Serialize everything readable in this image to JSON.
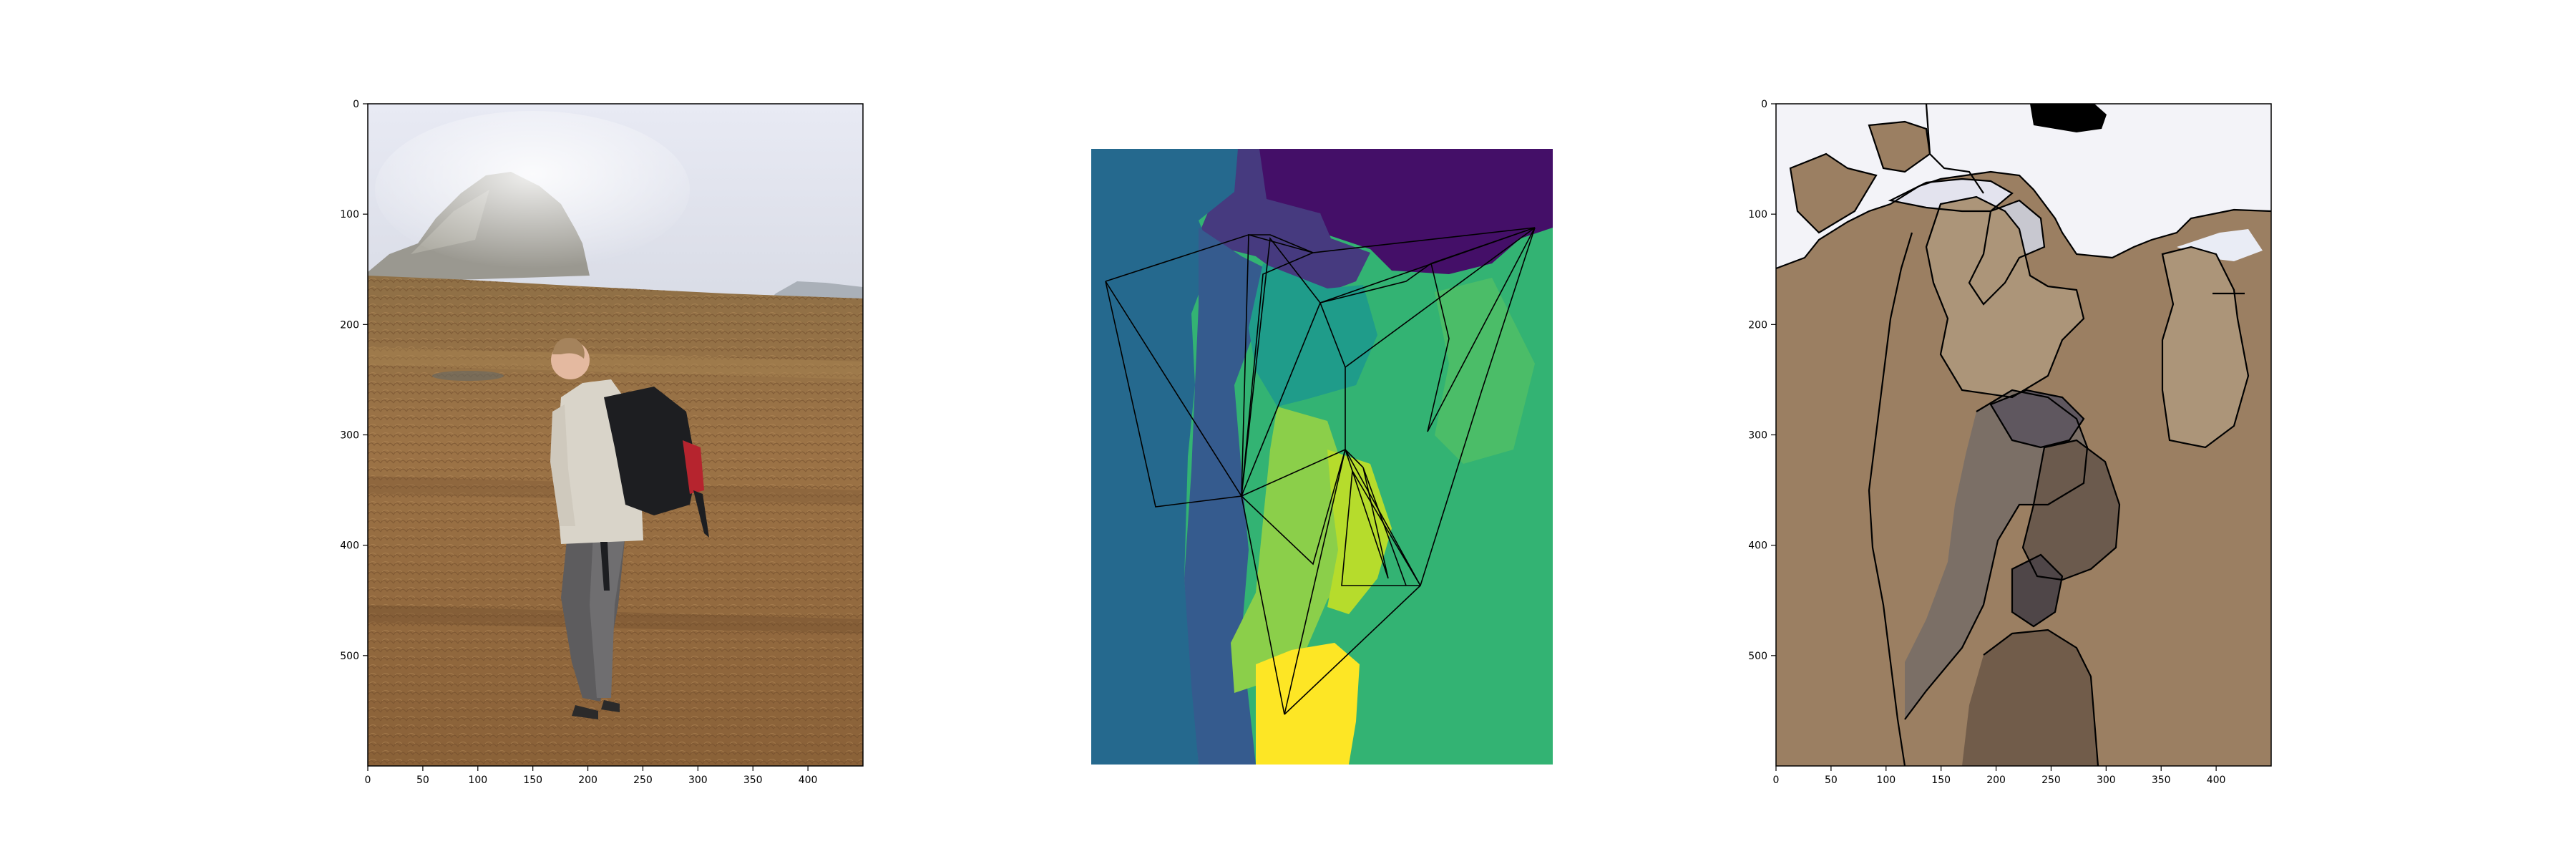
{
  "figure": {
    "panel_1": {
      "kind": "photograph",
      "subject": "hiker with black and red backpack on brown grassland, misty rocky peak",
      "xticks": [
        "0",
        "50",
        "100",
        "150",
        "200",
        "250",
        "300",
        "350",
        "400"
      ],
      "yticks": [
        "0",
        "100",
        "200",
        "300",
        "400",
        "500"
      ]
    },
    "panel_2": {
      "kind": "segmentation-map",
      "colormap": "viridis",
      "overlay": "black triangulation lines"
    },
    "panel_3": {
      "kind": "segmentation-boundaries",
      "xticks": [
        "0",
        "50",
        "100",
        "150",
        "200",
        "250",
        "300",
        "350",
        "400"
      ],
      "yticks": [
        "0",
        "100",
        "200",
        "300",
        "400",
        "500"
      ]
    }
  },
  "colors": {
    "sky": "#eef0f6",
    "ground": "#9b7f62",
    "viridis_dark": "#440f68",
    "viridis_teal": "#23698e",
    "viridis_green": "#33b373",
    "viridis_yellow": "#fde625"
  }
}
